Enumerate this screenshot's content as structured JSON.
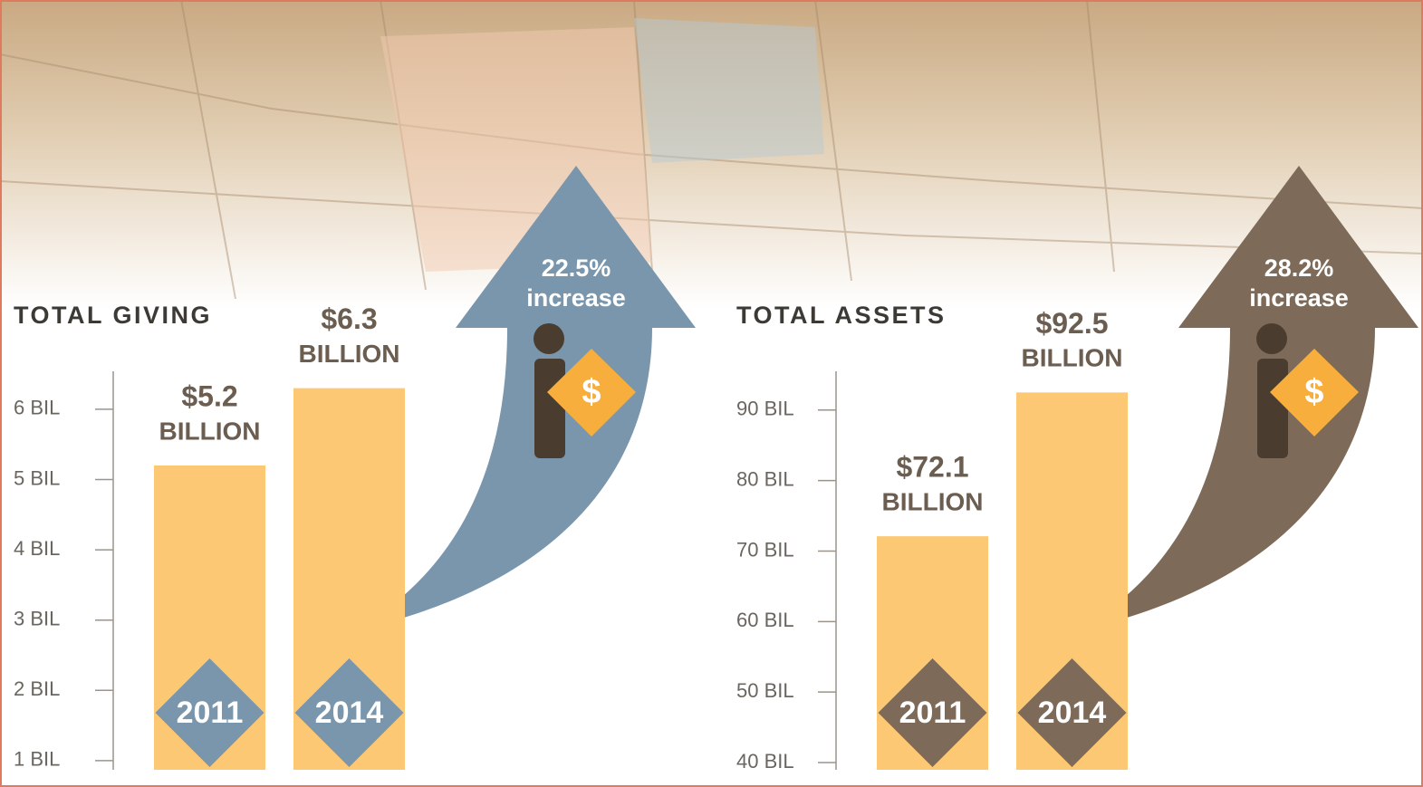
{
  "chart_data": [
    {
      "type": "bar",
      "title": "TOTAL GIVING",
      "categories": [
        "2011",
        "2014"
      ],
      "values": [
        5.2,
        6.3
      ],
      "value_labels": [
        "$5.2",
        "$6.3"
      ],
      "unit_label": "BILLION",
      "change_label": "22.5%",
      "change_text": "increase",
      "icon_label": "$",
      "color": "#fcc874",
      "accent_color": "#7996ad",
      "ylim": [
        0.87,
        6.54
      ],
      "yticks": [
        {
          "value": 1,
          "label": "1 BIL"
        },
        {
          "value": 2,
          "label": "2 BIL"
        },
        {
          "value": 3,
          "label": "3 BIL"
        },
        {
          "value": 4,
          "label": "4 BIL"
        },
        {
          "value": 5,
          "label": "5 BIL"
        },
        {
          "value": 6,
          "label": "6 BIL"
        }
      ]
    },
    {
      "type": "bar",
      "title": "TOTAL ASSETS",
      "categories": [
        "2011",
        "2014"
      ],
      "values": [
        72.1,
        92.5
      ],
      "value_labels": [
        "$72.1",
        "$92.5"
      ],
      "unit_label": "BILLION",
      "change_label": "28.2%",
      "change_text": "increase",
      "icon_label": "$",
      "color": "#fcc874",
      "accent_color": "#7d6a58",
      "ylim": [
        38.97,
        95.5
      ],
      "yticks": [
        {
          "value": 40,
          "label": "40 BIL"
        },
        {
          "value": 50,
          "label": "50 BIL"
        },
        {
          "value": 60,
          "label": "60 BIL"
        },
        {
          "value": 70,
          "label": "70 BIL"
        },
        {
          "value": 80,
          "label": "80 BIL"
        },
        {
          "value": 90,
          "label": "90 BIL"
        }
      ]
    }
  ]
}
